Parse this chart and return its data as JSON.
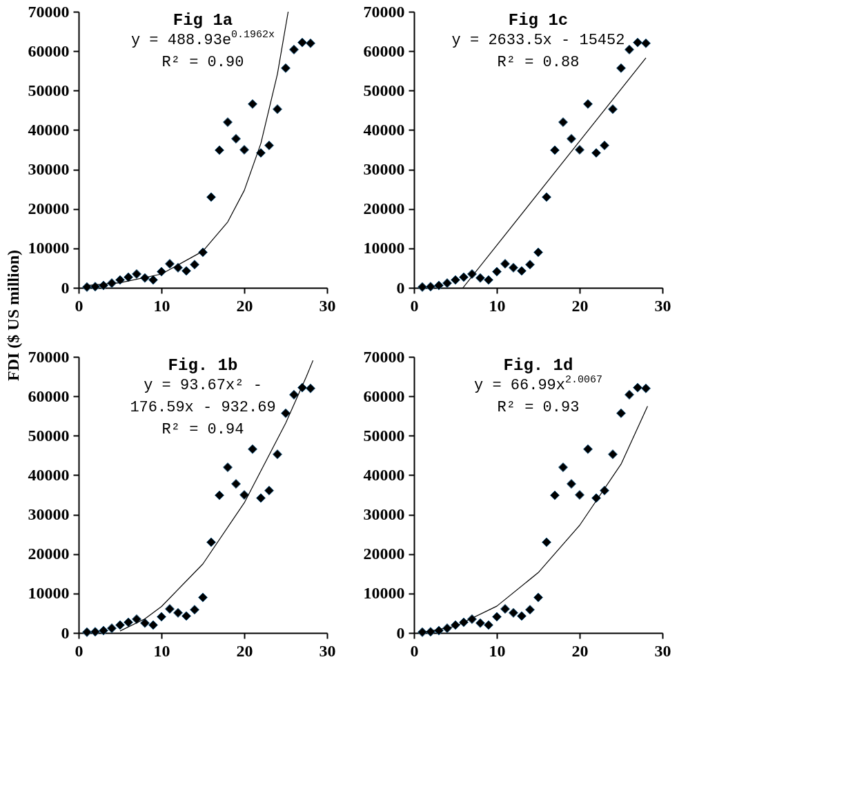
{
  "chart_data": [
    {
      "type": "scatter",
      "title": "Fig 1a",
      "ylabel": "FDI ($ US million)",
      "annotations": [
        "y = 488.93e$^{0.1962x}$",
        "R² = 0.90"
      ],
      "marker": "diamond",
      "xlim": [
        0,
        30
      ],
      "xticks": [
        0,
        10,
        20,
        30
      ],
      "ylim": [
        0,
        70000
      ],
      "yticks": [
        0,
        10000,
        20000,
        30000,
        40000,
        50000,
        60000,
        70000
      ],
      "series": [
        {
          "color": "#000000",
          "x": [
            1,
            2,
            3,
            4,
            5,
            6,
            7,
            8,
            9,
            10,
            11,
            12,
            13,
            14,
            15,
            16,
            17,
            18,
            19,
            20,
            21,
            22,
            23,
            24,
            25,
            26,
            27,
            28
          ],
          "values": [
            200,
            300,
            600,
            1200,
            2000,
            2700,
            3500,
            2500,
            2000,
            4100,
            6100,
            5100,
            4300,
            5900,
            9000,
            23000,
            34900,
            42000,
            37800,
            35000,
            46600,
            34200,
            36100,
            45300,
            55700,
            60400,
            62200,
            62000
          ]
        },
        {
          "type": "line",
          "color": "#000000",
          "marker": "none",
          "x": [
            1,
            5,
            10,
            15,
            18,
            20,
            22,
            24,
            25.3
          ],
          "values": [
            600,
            1300,
            3500,
            9300,
            16700,
            24700,
            36600,
            54200,
            70000
          ]
        }
      ]
    },
    {
      "type": "scatter",
      "title": "Fig 1c",
      "annotations": [
        "y = 2633.5x - 15452",
        "R² = 0.88"
      ],
      "marker": "diamond",
      "xlim": [
        0,
        30
      ],
      "xticks": [
        0,
        10,
        20,
        30
      ],
      "ylim": [
        0,
        70000
      ],
      "yticks": [
        0,
        10000,
        20000,
        30000,
        40000,
        50000,
        60000,
        70000
      ],
      "series": [
        {
          "color": "#000000",
          "x": [
            1,
            2,
            3,
            4,
            5,
            6,
            7,
            8,
            9,
            10,
            11,
            12,
            13,
            14,
            15,
            16,
            17,
            18,
            19,
            20,
            21,
            22,
            23,
            24,
            25,
            26,
            27,
            28
          ],
          "values": [
            200,
            300,
            600,
            1200,
            2000,
            2700,
            3500,
            2500,
            2000,
            4100,
            6100,
            5100,
            4300,
            5900,
            9000,
            23000,
            34900,
            42000,
            37800,
            35000,
            46600,
            34200,
            36100,
            45300,
            55700,
            60400,
            62200,
            62000
          ]
        },
        {
          "type": "line",
          "color": "#000000",
          "marker": "none",
          "x": [
            5.9,
            28
          ],
          "values": [
            0,
            58300
          ]
        }
      ]
    },
    {
      "type": "scatter",
      "title": "Fig. 1b",
      "annotations": [
        "y = 93.67x² -",
        "176.59x - 932.69",
        "R² = 0.94"
      ],
      "marker": "diamond",
      "xlim": [
        0,
        30
      ],
      "xticks": [
        0,
        10,
        20,
        30
      ],
      "ylim": [
        0,
        70000
      ],
      "yticks": [
        0,
        10000,
        20000,
        30000,
        40000,
        50000,
        60000,
        70000
      ],
      "series": [
        {
          "color": "#000000",
          "x": [
            1,
            2,
            3,
            4,
            5,
            6,
            7,
            8,
            9,
            10,
            11,
            12,
            13,
            14,
            15,
            16,
            17,
            18,
            19,
            20,
            21,
            22,
            23,
            24,
            25,
            26,
            27,
            28
          ],
          "values": [
            200,
            300,
            600,
            1200,
            2000,
            2700,
            3500,
            2500,
            2000,
            4100,
            6100,
            5100,
            4300,
            5900,
            9000,
            23000,
            34900,
            42000,
            37800,
            35000,
            46600,
            34200,
            36100,
            45300,
            55700,
            60400,
            62200,
            62000
          ]
        },
        {
          "type": "line",
          "color": "#000000",
          "marker": "none",
          "x": [
            5,
            8,
            10,
            15,
            20,
            25,
            27.5,
            28.3
          ],
          "values": [
            500,
            3600,
            6700,
            17500,
            33000,
            53200,
            65000,
            69100
          ]
        }
      ]
    },
    {
      "type": "scatter",
      "title": "Fig. 1d",
      "annotations": [
        "y = 66.99x$^{2.0067}$",
        "R² = 0.93"
      ],
      "marker": "diamond",
      "xlim": [
        0,
        30
      ],
      "xticks": [
        0,
        10,
        20,
        30
      ],
      "ylim": [
        0,
        70000
      ],
      "yticks": [
        0,
        10000,
        20000,
        30000,
        40000,
        50000,
        60000,
        70000
      ],
      "series": [
        {
          "color": "#000000",
          "x": [
            1,
            2,
            3,
            4,
            5,
            6,
            7,
            8,
            9,
            10,
            11,
            12,
            13,
            14,
            15,
            16,
            17,
            18,
            19,
            20,
            21,
            22,
            23,
            24,
            25,
            26,
            27,
            28
          ],
          "values": [
            200,
            300,
            600,
            1200,
            2000,
            2700,
            3500,
            2500,
            2000,
            4100,
            6100,
            5100,
            4300,
            5900,
            9000,
            23000,
            34900,
            42000,
            37800,
            35000,
            46600,
            34200,
            36100,
            45300,
            55700,
            60400,
            62200,
            62000
          ]
        },
        {
          "type": "line",
          "color": "#000000",
          "marker": "none",
          "x": [
            1,
            5,
            10,
            15,
            20,
            25,
            28.2
          ],
          "values": [
            100,
            1700,
            6800,
            15300,
            27300,
            42800,
            57500
          ]
        }
      ]
    }
  ]
}
